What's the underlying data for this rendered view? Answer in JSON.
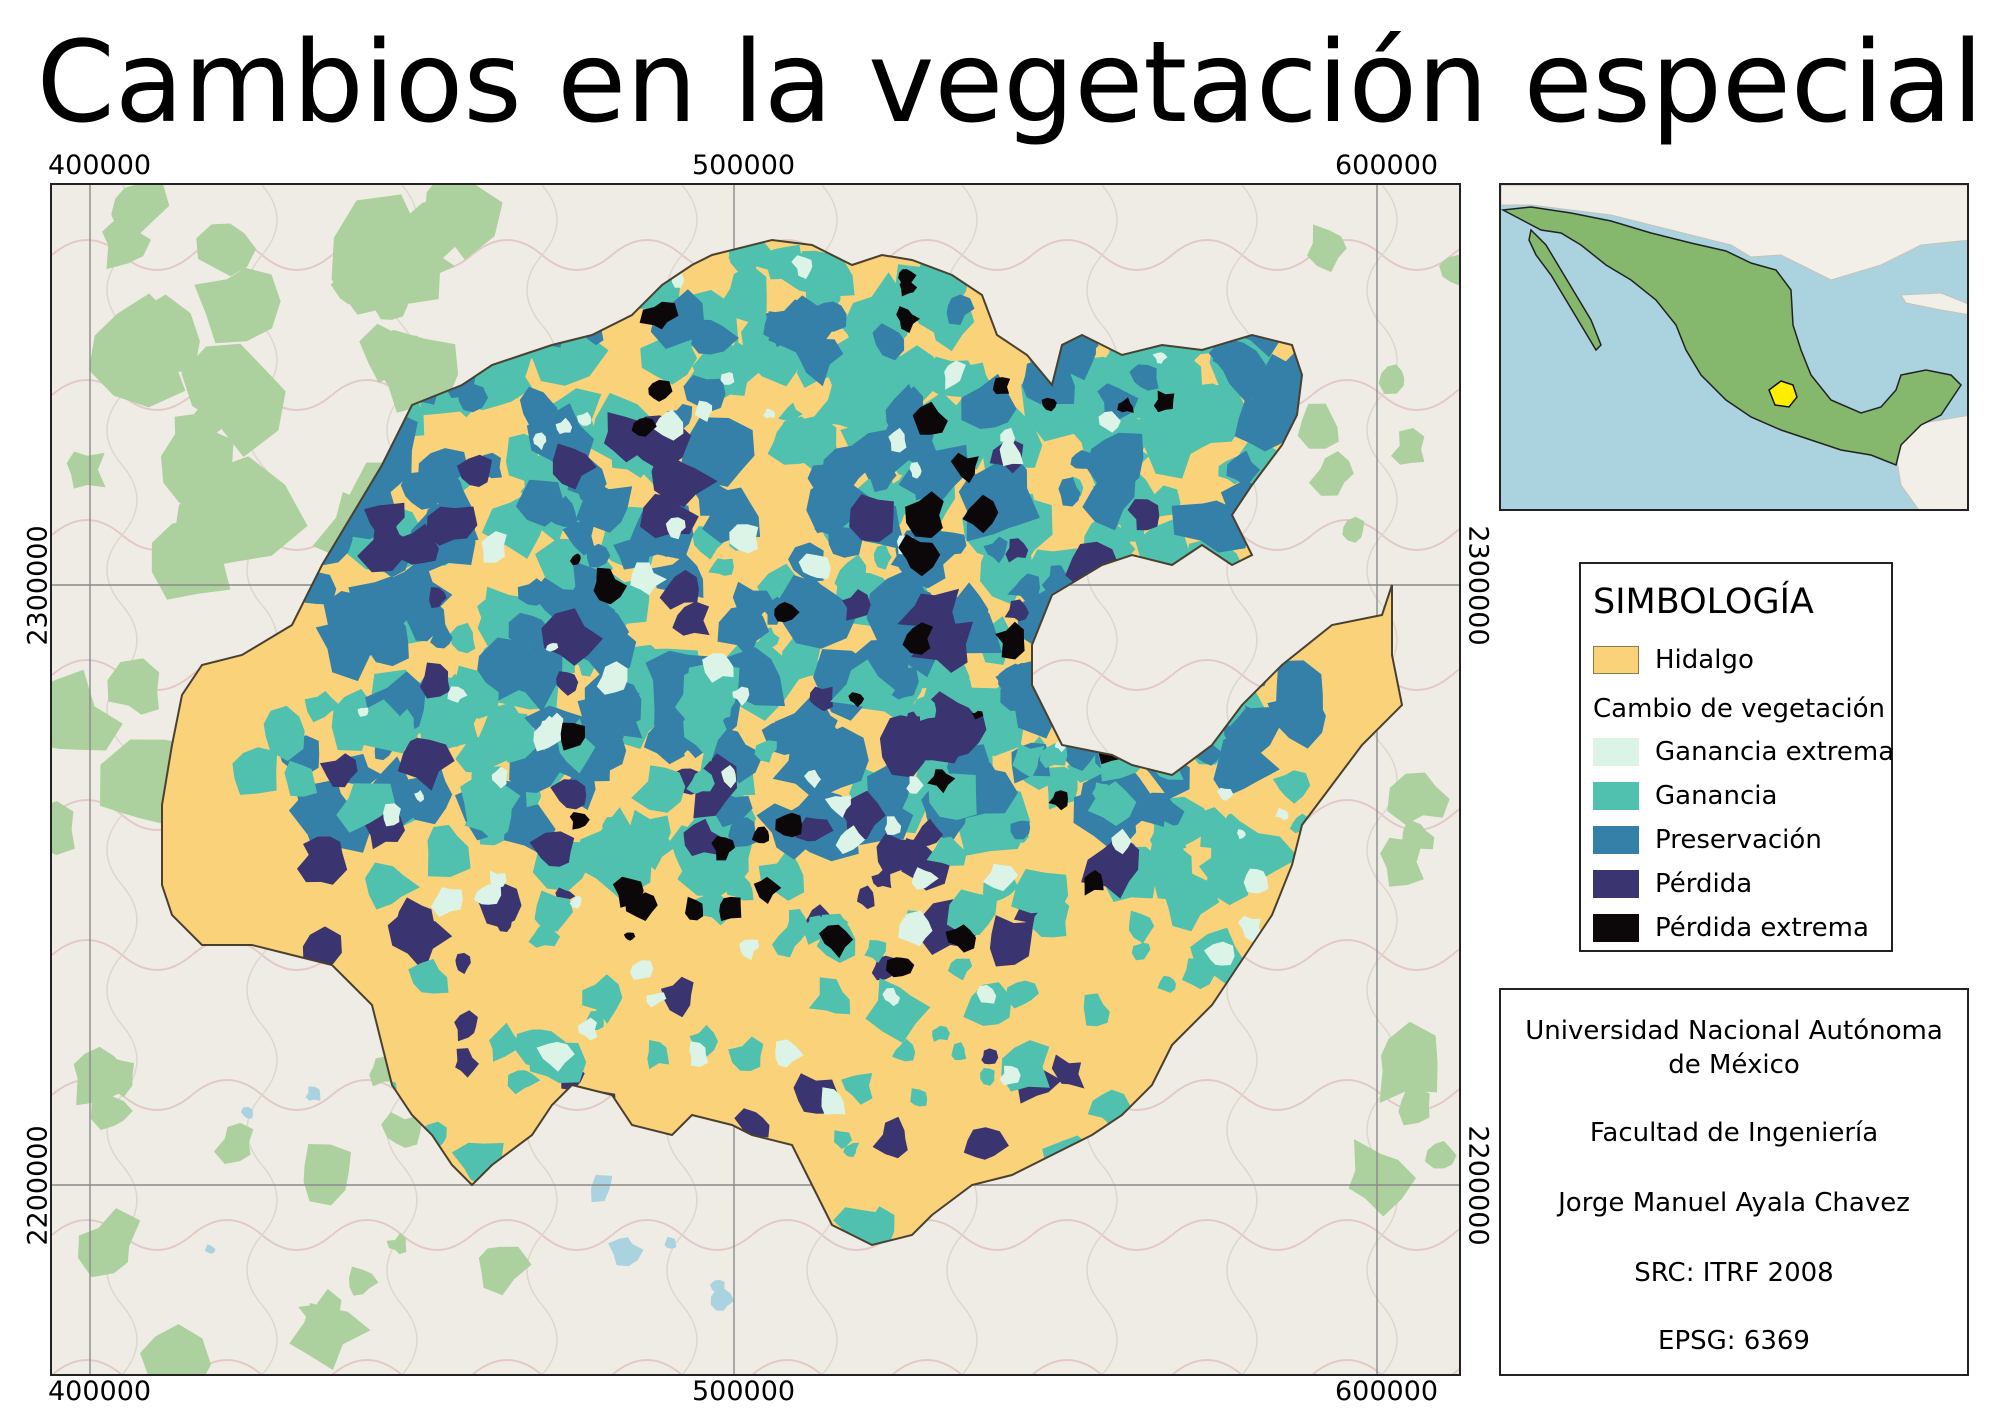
{
  "title": "Cambios en la vegetación especial",
  "map": {
    "x_ticks": [
      "400000",
      "500000",
      "600000"
    ],
    "y_ticks": [
      "2300000",
      "2200000"
    ]
  },
  "legend": {
    "title": "SIMBOLOGÍA",
    "items": [
      {
        "label": "Hidalgo",
        "color": "#f9d27a"
      }
    ],
    "group_title": "Cambio de vegetación",
    "group_items": [
      {
        "label": "Ganancia extrema",
        "color": "#dbf4e7"
      },
      {
        "label": "Ganancia",
        "color": "#4fc1ae"
      },
      {
        "label": "Preservación",
        "color": "#3480a8"
      },
      {
        "label": "Pérdida",
        "color": "#3a3470"
      },
      {
        "label": "Pérdida extrema",
        "color": "#0c0709"
      }
    ]
  },
  "credits": {
    "institution": "Universidad Nacional Autónoma de México",
    "faculty": "Facultad de Ingeniería",
    "author": "Jorge Manuel Ayala Chavez",
    "src": "SRC: ITRF 2008",
    "epsg": "EPSG: 6369"
  },
  "colors": {
    "basemap": "#efece6",
    "forest": "#add19e",
    "water": "#aad3df",
    "mexico": "#85b86d",
    "highlight": "#ffee00"
  }
}
